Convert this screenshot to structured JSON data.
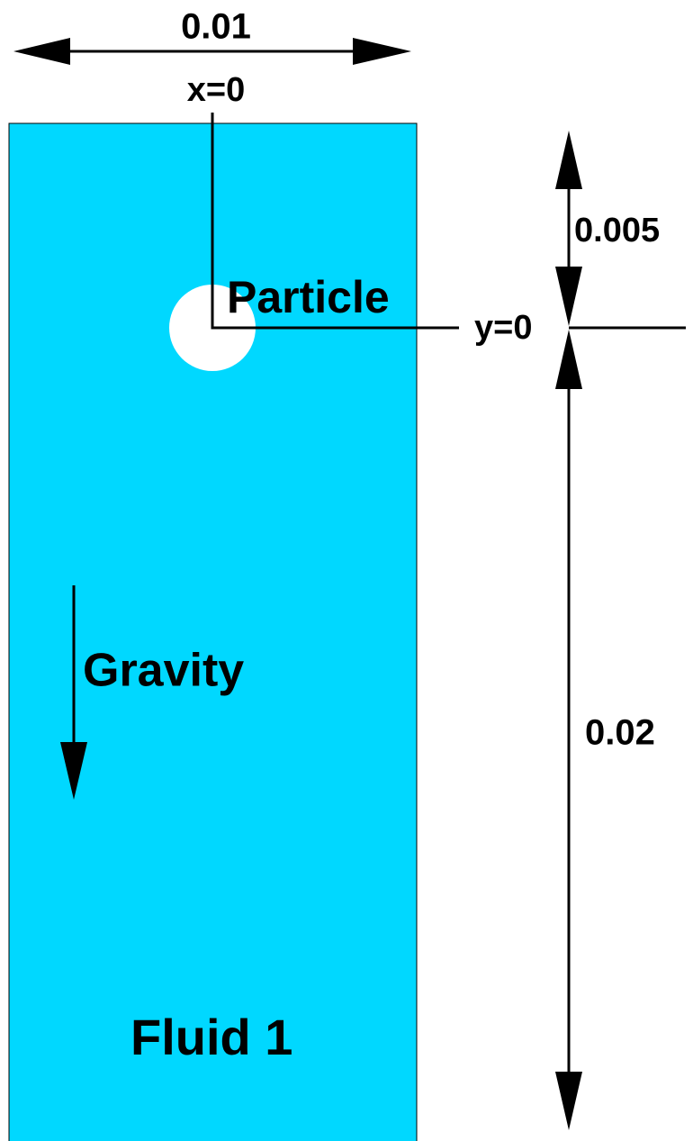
{
  "dimensions": {
    "width": "0.01",
    "upper_height": "0.005",
    "lower_height": "0.02"
  },
  "axes": {
    "x_origin": "x=0",
    "y_origin": "y=0"
  },
  "labels": {
    "particle": "Particle",
    "gravity": "Gravity",
    "fluid": "Fluid 1"
  }
}
